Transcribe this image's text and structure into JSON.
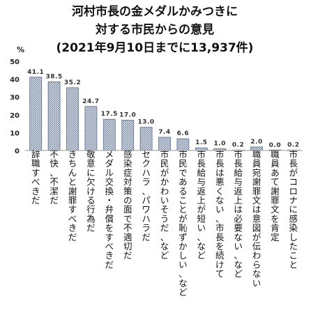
{
  "chart_data": {
    "type": "bar",
    "title_lines": [
      "河村市長の金メダルかみつきに",
      "対する市民からの意見",
      "(2021年9月10日までに13,937件)"
    ],
    "unit": "%",
    "ylim": [
      0,
      50
    ],
    "yticks": [
      "0",
      "10",
      "20",
      "30",
      "40",
      "50"
    ],
    "grid": false,
    "legend": "none",
    "bar_pattern": "crosshatch",
    "categories": [
      "辞職すべきだ",
      "不快、不潔だ",
      "きちんと謝罪すべきだ",
      "敬意に欠ける行為だ",
      "メダル交換・弁償をすべきだ",
      "感染症対策の面で不適切だ",
      "セクハラ、パワハラだ",
      "市民がかわいそうだ、など",
      "市民であることが恥ずかしい、など",
      "市長給与返上が短い、など",
      "市長は悪くない、市長を続けて",
      "市長給与返上は必要ない、など",
      "職員宛謝罪文は意図が伝わらない",
      "職員あて謝罪文を肯定",
      "市長がコロナに感染したこと"
    ],
    "values": [
      41.1,
      38.5,
      35.2,
      24.7,
      17.5,
      17.0,
      13.0,
      7.4,
      6.6,
      1.5,
      1.0,
      0.2,
      2.0,
      0.0,
      0.2
    ],
    "value_labels": [
      "41.1",
      "38.5",
      "35.2",
      "24.7",
      "17.5",
      "17.0",
      "13.0",
      "7.4",
      "6.6",
      "1.5",
      "1.0",
      "0.2",
      "2.0",
      "0.0",
      "0.2"
    ]
  }
}
